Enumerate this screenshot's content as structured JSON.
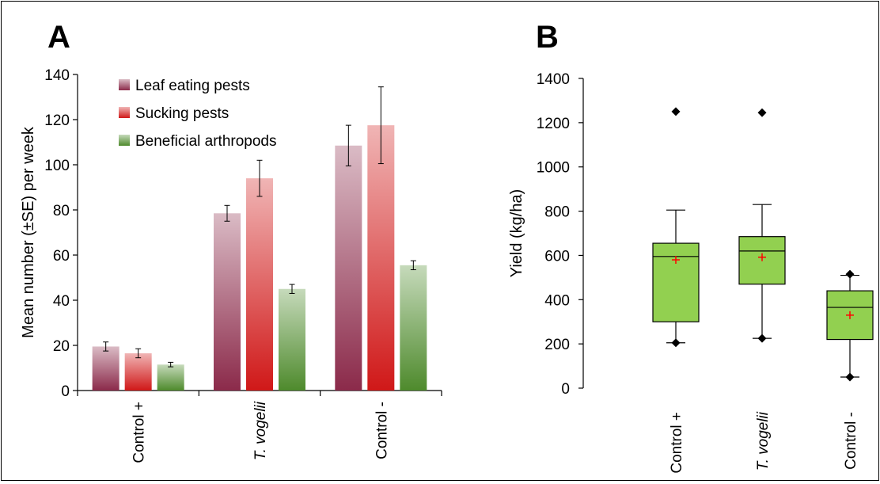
{
  "chart_data": [
    {
      "panel_label": "A",
      "type": "bar",
      "ylabel": "Mean number (±SE) per week",
      "ylim": [
        0,
        140
      ],
      "yticks": [
        "0",
        "20",
        "40",
        "60",
        "80",
        "100",
        "120",
        "140"
      ],
      "categories": [
        "Control +",
        "T. vogelii",
        "Control -"
      ],
      "legend_position": "top-left",
      "series": [
        {
          "name": "Leaf eating pests",
          "color": "#8b2a4a",
          "values": [
            19.5,
            78.5,
            108.5
          ],
          "errors": [
            2.0,
            3.5,
            9.0
          ]
        },
        {
          "name": "Sucking pests",
          "color": "#d01818",
          "values": [
            16.5,
            94,
            117.5
          ],
          "errors": [
            2.0,
            8.0,
            17.0
          ]
        },
        {
          "name": "Beneficial arthropods",
          "color": "#4e8a2c",
          "values": [
            11.5,
            45,
            55.5
          ],
          "errors": [
            1.0,
            2.0,
            2.0
          ]
        }
      ]
    },
    {
      "panel_label": "B",
      "type": "box",
      "ylabel": "Yield (kg/ha)",
      "ylim": [
        0,
        1400
      ],
      "yticks": [
        "0",
        "200",
        "400",
        "600",
        "800",
        "1000",
        "1200",
        "1400"
      ],
      "categories": [
        "Control +",
        "T. vogelii",
        "Control -"
      ],
      "box_color": "#92d050",
      "mean_marker_color": "#ff0000",
      "boxes": [
        {
          "whisker_low": 205,
          "q1": 300,
          "median": 595,
          "q3": 655,
          "whisker_high": 805,
          "mean": 580,
          "outliers": [
            205,
            1250
          ]
        },
        {
          "whisker_low": 225,
          "q1": 470,
          "median": 620,
          "q3": 685,
          "whisker_high": 830,
          "mean": 592,
          "outliers": [
            225,
            1245
          ]
        },
        {
          "whisker_low": 50,
          "q1": 220,
          "median": 365,
          "q3": 440,
          "whisker_high": 510,
          "mean": 330,
          "outliers": [
            50,
            515
          ]
        }
      ]
    }
  ]
}
